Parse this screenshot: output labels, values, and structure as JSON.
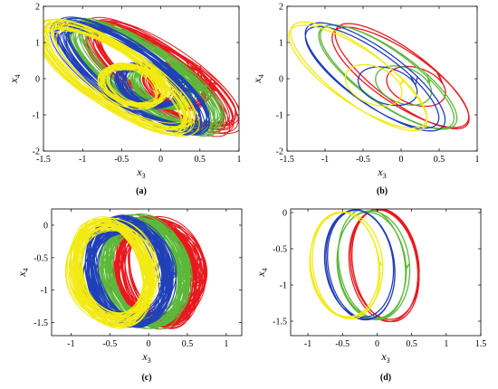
{
  "colors": {
    "red": "#e8191e",
    "green": "#5cb83a",
    "blue": "#2040b8",
    "yellow": "#f2ea12"
  },
  "chart_data": [
    {
      "id": "a",
      "type": "line",
      "panel_label": "(a)",
      "xlabel": "x3",
      "ylabel": "x4",
      "xlim": [
        -1.5,
        1
      ],
      "ylim": [
        -2,
        2
      ],
      "xticks": [
        -1.5,
        -1,
        -0.5,
        0,
        0.5,
        1
      ],
      "yticks": [
        -2,
        -1,
        0,
        1,
        2
      ],
      "style": "dense",
      "series": [
        {
          "color": "red",
          "dx": 0.36,
          "dy": 0.0
        },
        {
          "color": "green",
          "dx": 0.18,
          "dy": 0.0
        },
        {
          "color": "blue",
          "dx": 0.0,
          "dy": 0.0
        },
        {
          "color": "yellow",
          "dx": -0.2,
          "dy": 0.0
        }
      ]
    },
    {
      "id": "b",
      "type": "line",
      "panel_label": "(b)",
      "xlabel": "x3",
      "ylabel": "x4",
      "xlim": [
        -1.5,
        1
      ],
      "ylim": [
        -2,
        2
      ],
      "xticks": [
        -1.5,
        -1,
        -0.5,
        0,
        0.5,
        1
      ],
      "yticks": [
        -2,
        -1,
        0,
        1,
        2
      ],
      "style": "periodic",
      "series": [
        {
          "color": "red",
          "dx": 0.36,
          "dy": 0.0
        },
        {
          "color": "green",
          "dx": 0.18,
          "dy": 0.0
        },
        {
          "color": "blue",
          "dx": 0.0,
          "dy": 0.0
        },
        {
          "color": "yellow",
          "dx": -0.2,
          "dy": 0.0
        }
      ]
    },
    {
      "id": "c",
      "type": "line",
      "panel_label": "(c)",
      "xlabel": "x3",
      "ylabel": "x4",
      "xlim": [
        -1.25,
        1.2
      ],
      "ylim": [
        -1.7,
        0.25
      ],
      "xticks": [
        -1,
        -0.5,
        0,
        0.5,
        1
      ],
      "yticks": [
        -1.5,
        -1,
        -0.5,
        0
      ],
      "style": "dense",
      "series": [
        {
          "color": "red",
          "dx": 0.38,
          "dy": 0.0
        },
        {
          "color": "green",
          "dx": 0.2,
          "dy": 0.0
        },
        {
          "color": "blue",
          "dx": 0.0,
          "dy": 0.0
        },
        {
          "color": "yellow",
          "dx": -0.22,
          "dy": 0.0
        }
      ]
    },
    {
      "id": "d",
      "type": "line",
      "panel_label": "(d)",
      "xlabel": "x3",
      "ylabel": "x4",
      "xlim": [
        -1.25,
        1.5
      ],
      "ylim": [
        -1.7,
        0.05
      ],
      "xticks": [
        -1,
        -0.5,
        0,
        0.5,
        1,
        1.5
      ],
      "yticks": [
        -1.5,
        -1,
        -0.5,
        0
      ],
      "style": "periodic",
      "series": [
        {
          "color": "red",
          "dx": 0.36,
          "dy": 0.0
        },
        {
          "color": "green",
          "dx": 0.18,
          "dy": 0.0
        },
        {
          "color": "blue",
          "dx": 0.0,
          "dy": 0.0
        },
        {
          "color": "yellow",
          "dx": -0.2,
          "dy": 0.0
        }
      ]
    }
  ]
}
